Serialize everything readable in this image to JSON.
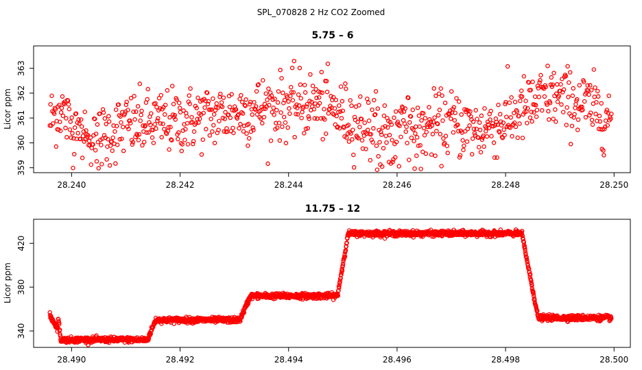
{
  "figure": {
    "suptitle": "SPL_070828  2 Hz CO2 Zoomed",
    "point_color": "#ff0000"
  },
  "chart_data": [
    {
      "type": "scatter",
      "title": "5.75 – 6",
      "xlabel": "",
      "ylabel": "Licor ppm",
      "xlim": [
        28.2393,
        28.2503
      ],
      "ylim": [
        358.8,
        363.9
      ],
      "x_ticks": [
        28.24,
        28.242,
        28.244,
        28.246,
        28.248,
        28.25
      ],
      "x_tick_labels": [
        "28.240",
        "28.242",
        "28.244",
        "28.246",
        "28.248",
        "28.250"
      ],
      "y_ticks": [
        359,
        360,
        361,
        362,
        363
      ],
      "y_tick_labels": [
        "359",
        "360",
        "361",
        "362",
        "363"
      ],
      "series": [
        {
          "name": "CO2",
          "x_range": [
            28.2396,
            28.24995
          ],
          "n_points": 900,
          "profile_x": [
            28.2396,
            28.2398,
            28.24,
            28.2405,
            28.241,
            28.242,
            28.243,
            28.2435,
            28.244,
            28.2445,
            28.245,
            28.2455,
            28.246,
            28.2465,
            28.247,
            28.2475,
            28.248,
            28.2485,
            28.2488,
            28.2495,
            28.24995
          ],
          "profile_mean": [
            360.9,
            361.4,
            360.6,
            360.2,
            360.7,
            360.9,
            361.2,
            361.4,
            361.5,
            361.6,
            361.1,
            360.6,
            360.4,
            360.6,
            360.8,
            360.5,
            360.9,
            361.5,
            361.9,
            361.5,
            361.0
          ],
          "spread": 0.65,
          "min": 358.9,
          "max": 363.7
        }
      ]
    },
    {
      "type": "scatter",
      "title": "11.75 – 12",
      "xlabel": "",
      "ylabel": "Licor ppm",
      "xlim": [
        28.4893,
        28.5003
      ],
      "ylim": [
        325,
        442
      ],
      "x_ticks": [
        28.49,
        28.492,
        28.494,
        28.496,
        28.498,
        28.5
      ],
      "x_tick_labels": [
        "28.490",
        "28.492",
        "28.494",
        "28.496",
        "28.498",
        "28.500"
      ],
      "y_ticks": [
        340,
        380,
        420
      ],
      "y_tick_labels": [
        "340",
        "380",
        "420"
      ],
      "series": [
        {
          "name": "CO2",
          "x_range": [
            28.4896,
            28.49995
          ],
          "n_points": 2100,
          "segments": [
            {
              "x_start": 28.4896,
              "x_end": 28.48975,
              "value": 354
            },
            {
              "x_start": 28.48975,
              "x_end": 28.4898,
              "value": 342
            },
            {
              "x_start": 28.4898,
              "x_end": 28.4914,
              "value": 332
            },
            {
              "x_start": 28.4914,
              "x_end": 28.49155,
              "value": 340
            },
            {
              "x_start": 28.49155,
              "x_end": 28.4931,
              "value": 350
            },
            {
              "x_start": 28.4931,
              "x_end": 28.4933,
              "value": 361
            },
            {
              "x_start": 28.4933,
              "x_end": 28.4949,
              "value": 372
            },
            {
              "x_start": 28.4949,
              "x_end": 28.4951,
              "value": 400
            },
            {
              "x_start": 28.4951,
              "x_end": 28.4983,
              "value": 429
            },
            {
              "x_start": 28.4983,
              "x_end": 28.4986,
              "value": 390
            },
            {
              "x_start": 28.4986,
              "x_end": 28.49995,
              "value": 352
            }
          ],
          "noise": 1.2
        }
      ]
    }
  ]
}
